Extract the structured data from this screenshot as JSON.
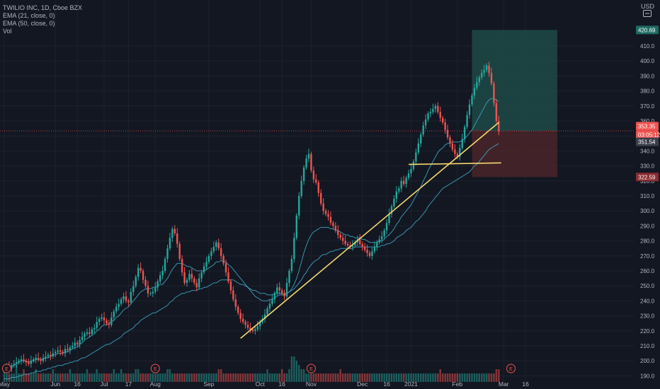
{
  "header": {
    "title": "TWILIO INC, 1D, Cboe BZX",
    "ema21_label": "EMA (21, close, 0)",
    "ema50_label": "EMA (50, close, 0)",
    "vol_label": "Vol",
    "currency": "USD"
  },
  "price_tags": {
    "target": "420.69",
    "current": "353.35",
    "countdown": "03:05:12",
    "ema": "351.54",
    "stop": "322.59"
  },
  "colors": {
    "background": "#131722",
    "up": "#26a69a",
    "down": "#ef5350",
    "ema": "#3fa9c7",
    "trendline": "#f5d76e",
    "profit_zone": "#1d4a47",
    "loss_zone": "#4a2429",
    "axis_text": "#b2b5be"
  },
  "earnings_marker": "E",
  "chart_data": {
    "type": "candlestick",
    "title": "TWILIO INC, 1D, Cboe BZX",
    "xlabel": "",
    "ylabel": "",
    "ylim": [
      185,
      435
    ],
    "y_ticks": [
      190,
      200,
      210,
      220,
      230,
      240,
      250,
      260,
      270,
      280,
      290,
      300,
      310,
      320,
      330,
      340,
      350,
      360,
      370,
      380,
      390,
      400,
      410
    ],
    "x_ticks": [
      "May",
      "Jun",
      "16",
      "Jul",
      "17",
      "Aug",
      "Sep",
      "Oct",
      "16",
      "Nov",
      "Dec",
      "16",
      "2021",
      "Feb",
      "Mar",
      "16"
    ],
    "x_tick_positions": [
      0,
      21,
      30,
      41,
      51,
      62,
      84,
      105,
      114,
      126,
      147,
      157,
      167,
      186,
      205,
      214
    ],
    "series": [
      {
        "name": "Close",
        "values": [
          196,
          196,
          195,
          197,
          198,
          199,
          200,
          201,
          200,
          199,
          198,
          200,
          201,
          202,
          201,
          200,
          202,
          203,
          204,
          203,
          205,
          206,
          207,
          206,
          205,
          208,
          207,
          209,
          210,
          212,
          211,
          214,
          216,
          218,
          219,
          218,
          221,
          222,
          226,
          228,
          229,
          227,
          225,
          224,
          229,
          233,
          236,
          238,
          241,
          243,
          240,
          239,
          246,
          250,
          256,
          262,
          260,
          254,
          250,
          245,
          245,
          246,
          249,
          253,
          257,
          260,
          268,
          275,
          282,
          288,
          285,
          278,
          268,
          259,
          252,
          254,
          258,
          255,
          252,
          249,
          255,
          259,
          263,
          266,
          270,
          273,
          276,
          279,
          275,
          270,
          265,
          259,
          253,
          247,
          241,
          236,
          232,
          228,
          226,
          224,
          222,
          221,
          220,
          221,
          223,
          226,
          228,
          231,
          235,
          238,
          241,
          245,
          249,
          247,
          245,
          243,
          252,
          260,
          268,
          282,
          297,
          310,
          320,
          329,
          335,
          338,
          327,
          321,
          319,
          312,
          305,
          300,
          298,
          296,
          292,
          290,
          287,
          284,
          282,
          280,
          278,
          277,
          276,
          277,
          279,
          281,
          278,
          276,
          274,
          272,
          270,
          273,
          276,
          279,
          281,
          283,
          287,
          292,
          298,
          303,
          308,
          313,
          315,
          320,
          318,
          322,
          325,
          328,
          333,
          339,
          345,
          351,
          357,
          361,
          365,
          366,
          368,
          370,
          366,
          362,
          359,
          354,
          349,
          345,
          341,
          338,
          336,
          342,
          348,
          356,
          364,
          371,
          377,
          382,
          386,
          389,
          392,
          394,
          397,
          392,
          385,
          372,
          360,
          353
        ]
      },
      {
        "name": "EMA (21, close, 0)",
        "values": [
          196,
          196,
          195,
          196,
          197,
          198,
          199,
          200,
          200,
          200,
          199,
          200,
          200,
          201,
          201,
          201,
          201,
          202,
          202,
          203,
          204,
          204,
          205,
          205,
          205,
          206,
          206,
          207,
          208,
          209,
          209,
          211,
          212,
          214,
          215,
          216,
          217,
          218,
          220,
          221,
          223,
          224,
          224,
          225,
          226,
          227,
          229,
          230,
          232,
          234,
          235,
          236,
          238,
          240,
          242,
          244,
          246,
          247,
          248,
          248,
          248,
          249,
          249,
          250,
          251,
          251,
          253,
          255,
          258,
          261,
          263,
          265,
          265,
          265,
          264,
          263,
          263,
          262,
          261,
          260,
          260,
          260,
          260,
          261,
          262,
          263,
          264,
          266,
          266,
          267,
          266,
          266,
          264,
          263,
          261,
          259,
          257,
          255,
          253,
          251,
          249,
          247,
          245,
          243,
          242,
          241,
          240,
          240,
          240,
          241,
          241,
          242,
          243,
          244,
          244,
          244,
          245,
          246,
          248,
          251,
          255,
          260,
          266,
          272,
          277,
          281,
          284,
          286,
          287,
          288,
          289,
          289,
          289,
          289,
          288,
          288,
          287,
          287,
          286,
          285,
          284,
          284,
          283,
          283,
          282,
          282,
          282,
          281,
          281,
          280,
          279,
          279,
          279,
          279,
          280,
          280,
          281,
          283,
          284,
          286,
          288,
          291,
          293,
          296,
          298,
          300,
          302,
          304,
          307,
          310,
          313,
          316,
          320,
          323,
          327,
          330,
          333,
          336,
          339,
          341,
          342,
          344,
          345,
          345,
          346,
          346,
          346,
          346,
          347,
          348,
          350,
          352,
          354,
          357,
          360,
          363,
          366,
          369,
          372,
          374,
          375,
          375,
          374,
          373
        ]
      },
      {
        "name": "EMA (50, close, 0)",
        "values": [
          188,
          188,
          188,
          189,
          189,
          189,
          190,
          190,
          191,
          191,
          191,
          192,
          192,
          193,
          193,
          193,
          194,
          194,
          195,
          195,
          196,
          196,
          197,
          197,
          197,
          198,
          198,
          199,
          199,
          200,
          200,
          201,
          202,
          202,
          203,
          204,
          205,
          206,
          207,
          208,
          209,
          210,
          211,
          211,
          212,
          213,
          214,
          215,
          216,
          218,
          219,
          220,
          221,
          222,
          224,
          225,
          227,
          228,
          229,
          230,
          231,
          232,
          232,
          233,
          234,
          235,
          236,
          237,
          239,
          240,
          242,
          243,
          244,
          245,
          245,
          246,
          246,
          247,
          247,
          247,
          248,
          248,
          249,
          249,
          250,
          251,
          252,
          252,
          253,
          254,
          254,
          254,
          254,
          254,
          254,
          253,
          252,
          251,
          251,
          250,
          249,
          248,
          247,
          247,
          246,
          245,
          245,
          245,
          244,
          244,
          244,
          245,
          245,
          245,
          245,
          245,
          245,
          246,
          247,
          248,
          250,
          252,
          254,
          257,
          259,
          262,
          264,
          266,
          267,
          268,
          270,
          271,
          271,
          272,
          273,
          273,
          274,
          274,
          275,
          275,
          275,
          275,
          275,
          275,
          276,
          276,
          276,
          276,
          276,
          276,
          276,
          276,
          276,
          276,
          276,
          277,
          277,
          278,
          278,
          279,
          280,
          282,
          283,
          284,
          285,
          287,
          288,
          289,
          291,
          293,
          294,
          296,
          298,
          300,
          303,
          305,
          307,
          309,
          311,
          313,
          315,
          316,
          317,
          318,
          319,
          320,
          321,
          322,
          323,
          324,
          325,
          326,
          328,
          330,
          331,
          333,
          335,
          337,
          339,
          341,
          342,
          343,
          344,
          345
        ]
      },
      {
        "name": "Vol",
        "values": [
          3,
          2,
          2,
          2,
          2,
          4,
          2,
          2,
          3,
          2,
          2,
          2,
          2,
          3,
          2,
          2,
          2,
          2,
          2,
          2,
          3,
          2,
          2,
          2,
          2,
          2,
          2,
          3,
          2,
          2,
          2,
          2,
          2,
          2,
          3,
          2,
          2,
          2,
          3,
          2,
          2,
          2,
          2,
          2,
          2,
          3,
          2,
          2,
          3,
          2,
          2,
          2,
          2,
          2,
          3,
          3,
          2,
          2,
          2,
          2,
          2,
          2,
          2,
          2,
          2,
          2,
          2,
          3,
          3,
          2,
          2,
          2,
          2,
          2,
          2,
          2,
          2,
          2,
          2,
          2,
          2,
          2,
          2,
          2,
          2,
          2,
          2,
          2,
          3,
          3,
          2,
          2,
          2,
          2,
          2,
          2,
          2,
          2,
          2,
          2,
          2,
          2,
          2,
          2,
          2,
          2,
          2,
          2,
          3,
          2,
          2,
          2,
          2,
          2,
          3,
          2,
          2,
          3,
          6,
          6,
          5,
          4,
          3,
          3,
          2,
          2,
          2,
          2,
          2,
          2,
          2,
          2,
          2,
          2,
          2,
          2,
          2,
          2,
          3,
          2,
          2,
          2,
          2,
          2,
          2,
          2,
          2,
          2,
          2,
          2,
          2,
          2,
          2,
          2,
          2,
          2,
          2,
          2,
          2,
          2,
          2,
          2,
          2,
          2,
          2,
          2,
          2,
          2,
          2,
          2,
          2,
          2,
          2,
          2,
          2,
          2,
          2,
          2,
          2,
          3,
          2,
          2,
          2,
          2,
          2,
          2,
          2,
          2,
          2,
          2,
          2,
          2,
          2,
          2,
          2,
          2,
          2,
          2,
          2,
          2,
          2,
          2,
          3,
          3,
          2
        ]
      }
    ],
    "earnings_days": [
      1,
      62,
      126,
      208
    ],
    "drawings": {
      "ascending_trendline": [
        [
          97,
          215
        ],
        [
          203,
          359
        ]
      ],
      "support_line": [
        [
          166,
          331
        ],
        [
          204,
          332
        ]
      ],
      "profit_zone": {
        "day_from": 192,
        "day_to": 227,
        "price_from": 353.35,
        "price_to": 420.69
      },
      "loss_zone": {
        "day_from": 192,
        "day_to": 227,
        "price_from": 322.59,
        "price_to": 353.35
      }
    }
  }
}
